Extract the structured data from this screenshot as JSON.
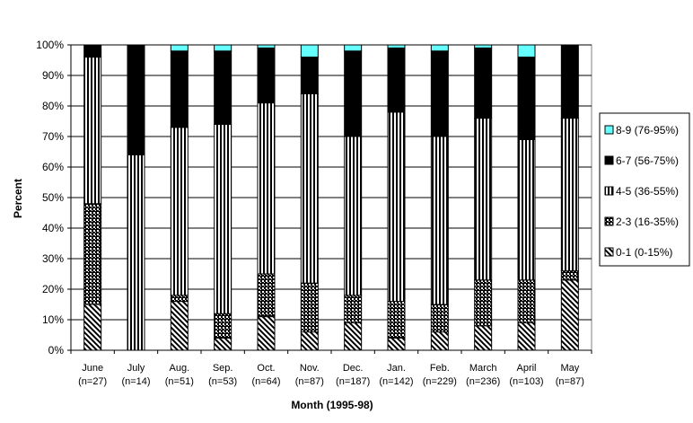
{
  "chart_data": {
    "type": "bar",
    "stacked": true,
    "xlabel": "Month (1995-98)",
    "ylabel": "Percent",
    "ylim": [
      0,
      100
    ],
    "ytick_labels": [
      "0%",
      "10%",
      "20%",
      "30%",
      "40%",
      "50%",
      "60%",
      "70%",
      "80%",
      "90%",
      "100%"
    ],
    "grid": true,
    "legend_position": "right",
    "categories": [
      {
        "month": "June",
        "n": "(n=27)"
      },
      {
        "month": "July",
        "n": "(n=14)"
      },
      {
        "month": "Aug.",
        "n": "(n=51)"
      },
      {
        "month": "Sep.",
        "n": "(n=53)"
      },
      {
        "month": "Oct.",
        "n": "(n=64)"
      },
      {
        "month": "Nov.",
        "n": "(n=87)"
      },
      {
        "month": "Dec.",
        "n": "(n=187)"
      },
      {
        "month": "Jan.",
        "n": "(n=142)"
      },
      {
        "month": "Feb.",
        "n": "(n=229)"
      },
      {
        "month": "March",
        "n": "(n=236)"
      },
      {
        "month": "April",
        "n": "(n=103)"
      },
      {
        "month": "May",
        "n": "(n=87)"
      }
    ],
    "series": [
      {
        "name": "0-1 (0-15%)",
        "pattern": "diagonal-hatch",
        "values": [
          15,
          0,
          16,
          4,
          11,
          6,
          9,
          4,
          6,
          8,
          9,
          23
        ]
      },
      {
        "name": "2-3 (16-35%)",
        "pattern": "crosshatch",
        "values": [
          33,
          0,
          2,
          8,
          14,
          16,
          9,
          12,
          9,
          15,
          14,
          3
        ]
      },
      {
        "name": "4-5 (36-55%)",
        "pattern": "vertical-stripes",
        "values": [
          48,
          64,
          55,
          62,
          56,
          62,
          52,
          62,
          55,
          53,
          46,
          50
        ]
      },
      {
        "name": "6-7 (56-75%)",
        "pattern": "solid-black",
        "values": [
          4,
          36,
          25,
          24,
          18,
          12,
          28,
          21,
          28,
          23,
          27,
          24
        ]
      },
      {
        "name": "8-9 (76-95%)",
        "pattern": "solid-cyan",
        "values": [
          0,
          0,
          2,
          2,
          1,
          4,
          2,
          1,
          2,
          1,
          4,
          0
        ]
      }
    ],
    "legend_order": [
      "8-9 (76-95%)",
      "6-7 (56-75%)",
      "4-5 (36-55%)",
      "2-3 (16-35%)",
      "0-1 (0-15%)"
    ],
    "colors": {
      "cyan": "#66ffff",
      "black": "#000000",
      "white": "#ffffff"
    }
  }
}
